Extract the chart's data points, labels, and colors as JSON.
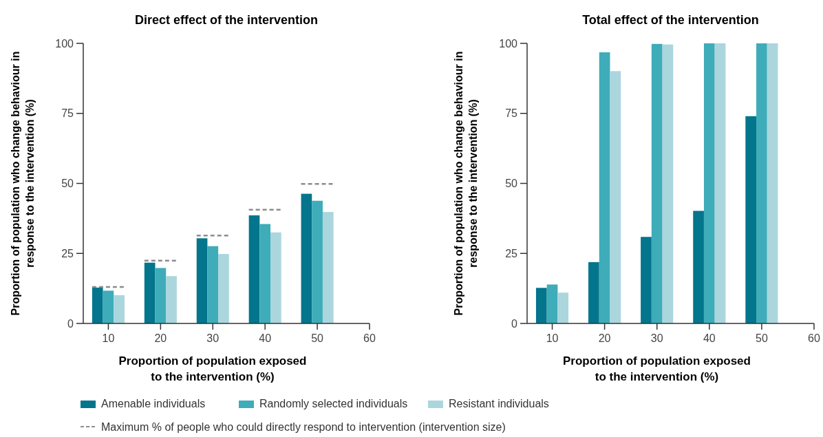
{
  "chart_data": [
    {
      "type": "bar",
      "title": "Direct effect of the intervention",
      "xlabel": "Proportion of population exposed\nto the intervention (%)",
      "ylabel": "Proportion of population who change behaviour in\nresponse to the intervention (%)",
      "x": [
        10,
        20,
        30,
        40,
        50
      ],
      "xlim": [
        5.2,
        60
      ],
      "xticks": [
        10,
        20,
        30,
        40,
        50,
        60
      ],
      "ylim": [
        0,
        100
      ],
      "yticks": [
        0,
        25,
        50,
        75,
        100
      ],
      "legend": "bottom",
      "series": [
        {
          "name": "Amenable individuals",
          "color": "#03758c",
          "values": [
            12.8,
            21.7,
            30.4,
            38.6,
            46.3
          ]
        },
        {
          "name": "Randomly selected individuals",
          "color": "#3eacb9",
          "values": [
            11.7,
            19.8,
            27.6,
            35.5,
            43.8
          ]
        },
        {
          "name": "Resistant individuals",
          "color": "#abd6dd",
          "values": [
            10.1,
            16.9,
            24.8,
            32.5,
            39.8
          ]
        },
        {
          "name": "Maximum % of people who could directly respond to intervention (intervention size)",
          "type": "line",
          "line_style": "dashed",
          "marker": "none",
          "color": "#8c8c8c",
          "x": [
            6.9,
            13.1,
            15,
            16.9,
            23.1,
            25,
            26.9,
            33.1,
            35,
            36.9,
            43.1,
            45,
            46.9,
            53.1
          ],
          "values": [
            13.0,
            13.0,
            null,
            22.4,
            22.4,
            null,
            31.4,
            31.4,
            null,
            40.6,
            40.6,
            null,
            49.8,
            49.8
          ]
        }
      ]
    },
    {
      "type": "bar",
      "title": "Total effect of the intervention",
      "xlabel": "Proportion of population exposed\nto the intervention (%)",
      "ylabel": "Proportion of population who change behaviour in\nresponse to the intervention (%)",
      "x": [
        10,
        20,
        30,
        40,
        50
      ],
      "xlim": [
        5.2,
        60
      ],
      "xticks": [
        10,
        20,
        30,
        40,
        50,
        60
      ],
      "ylim": [
        0,
        100
      ],
      "yticks": [
        0,
        25,
        50,
        75,
        100
      ],
      "series": [
        {
          "color": "#03758c",
          "values": [
            12.7,
            21.9,
            30.9,
            40.2,
            74.0
          ]
        },
        {
          "color": "#3eacb9",
          "values": [
            13.9,
            96.8,
            99.8,
            100,
            100
          ]
        },
        {
          "color": "#abd6dd",
          "values": [
            11.0,
            90.1,
            99.6,
            100,
            100
          ]
        }
      ]
    }
  ]
}
